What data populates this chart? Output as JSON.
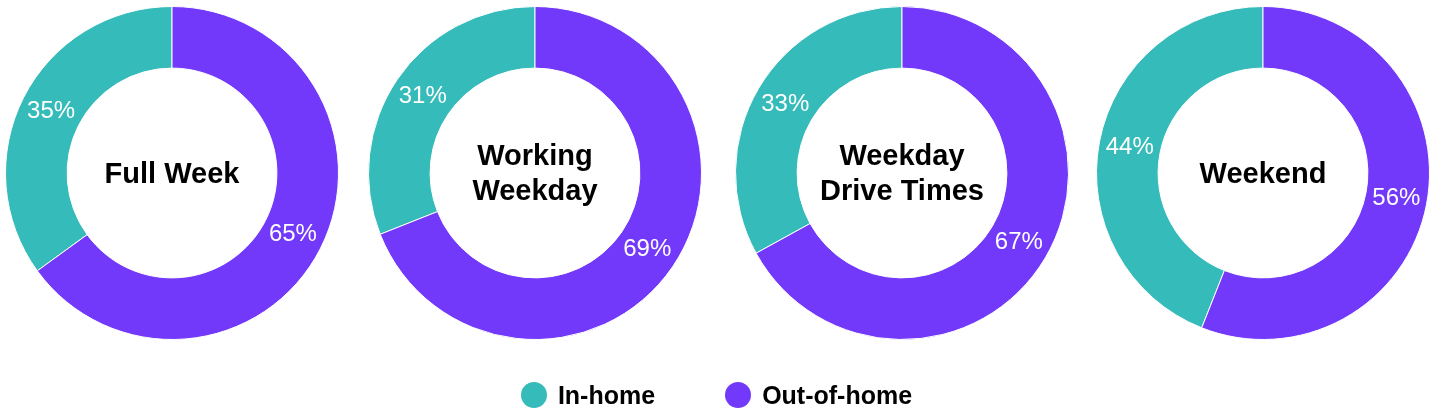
{
  "chart_data": [
    {
      "type": "donut",
      "title": "Full Week",
      "categories": [
        "In-home",
        "Out-of-home"
      ],
      "values": [
        35,
        65
      ],
      "colors": [
        "#35bbb9",
        "#7239fa"
      ],
      "value_labels": [
        "35%",
        "65%"
      ],
      "legend": "bottom"
    },
    {
      "type": "donut",
      "title": "Working Weekday",
      "categories": [
        null,
        null
      ],
      "values": [
        31,
        69
      ],
      "colors": [
        "#35bbb9",
        "#7239fa"
      ],
      "value_labels": [
        "31%",
        "69%"
      ]
    },
    {
      "type": "donut",
      "title": "Weekday Drive Times",
      "categories": [
        null,
        null
      ],
      "values": [
        33,
        67
      ],
      "colors": [
        "#35bbb9",
        "#7239fa"
      ],
      "value_labels": [
        "33%",
        "67%"
      ]
    },
    {
      "type": "donut",
      "title": "Weekend",
      "categories": [
        null,
        null
      ],
      "values": [
        44,
        56
      ],
      "colors": [
        "#35bbb9",
        "#7239fa"
      ],
      "value_labels": [
        "44%",
        "56%"
      ]
    }
  ]
}
